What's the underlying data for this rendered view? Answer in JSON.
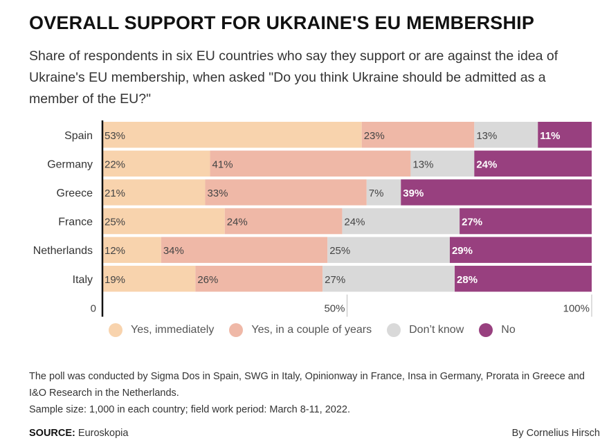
{
  "header": {
    "title": "OVERALL SUPPORT FOR UKRAINE'S EU MEMBERSHIP",
    "subtitle": "Share of respondents in six EU countries who say they support or are against the idea of Ukraine's EU membership, when asked \"Do you think Ukraine should be admitted as a member of the EU?\""
  },
  "chart_data": {
    "type": "bar",
    "orientation": "horizontal",
    "stacked": true,
    "categories": [
      "Spain",
      "Germany",
      "Greece",
      "France",
      "Netherlands",
      "Italy"
    ],
    "series": [
      {
        "name": "Yes, immediately",
        "color": "#f8d3ad",
        "values": [
          53,
          22,
          21,
          25,
          12,
          19
        ]
      },
      {
        "name": "Yes, in a couple of years",
        "color": "#efb8a7",
        "values": [
          23,
          41,
          33,
          24,
          34,
          26
        ]
      },
      {
        "name": "Don’t know",
        "color": "#d9d9d9",
        "values": [
          13,
          13,
          7,
          24,
          25,
          27
        ]
      },
      {
        "name": "No",
        "color": "#98407f",
        "values": [
          11,
          24,
          39,
          27,
          29,
          28
        ]
      }
    ],
    "xticks": [
      "0",
      "50%",
      "100%"
    ],
    "xtick_values": [
      0,
      50,
      100
    ],
    "xlim": [
      0,
      100
    ],
    "legend_position": "bottom",
    "grid": false
  },
  "notes": {
    "line1": "The poll was conducted by Sigma Dos in Spain, SWG in Italy, Opinionway in France, Insa in Germany, Prorata in Greece and I&O Research in the Netherlands.",
    "line2": "Sample size: 1,000 in each country; field work period: March 8-11, 2022."
  },
  "footer": {
    "source_label": "SOURCE:",
    "source_value": " Euroskopia",
    "byline": "By Cornelius Hirsch"
  }
}
